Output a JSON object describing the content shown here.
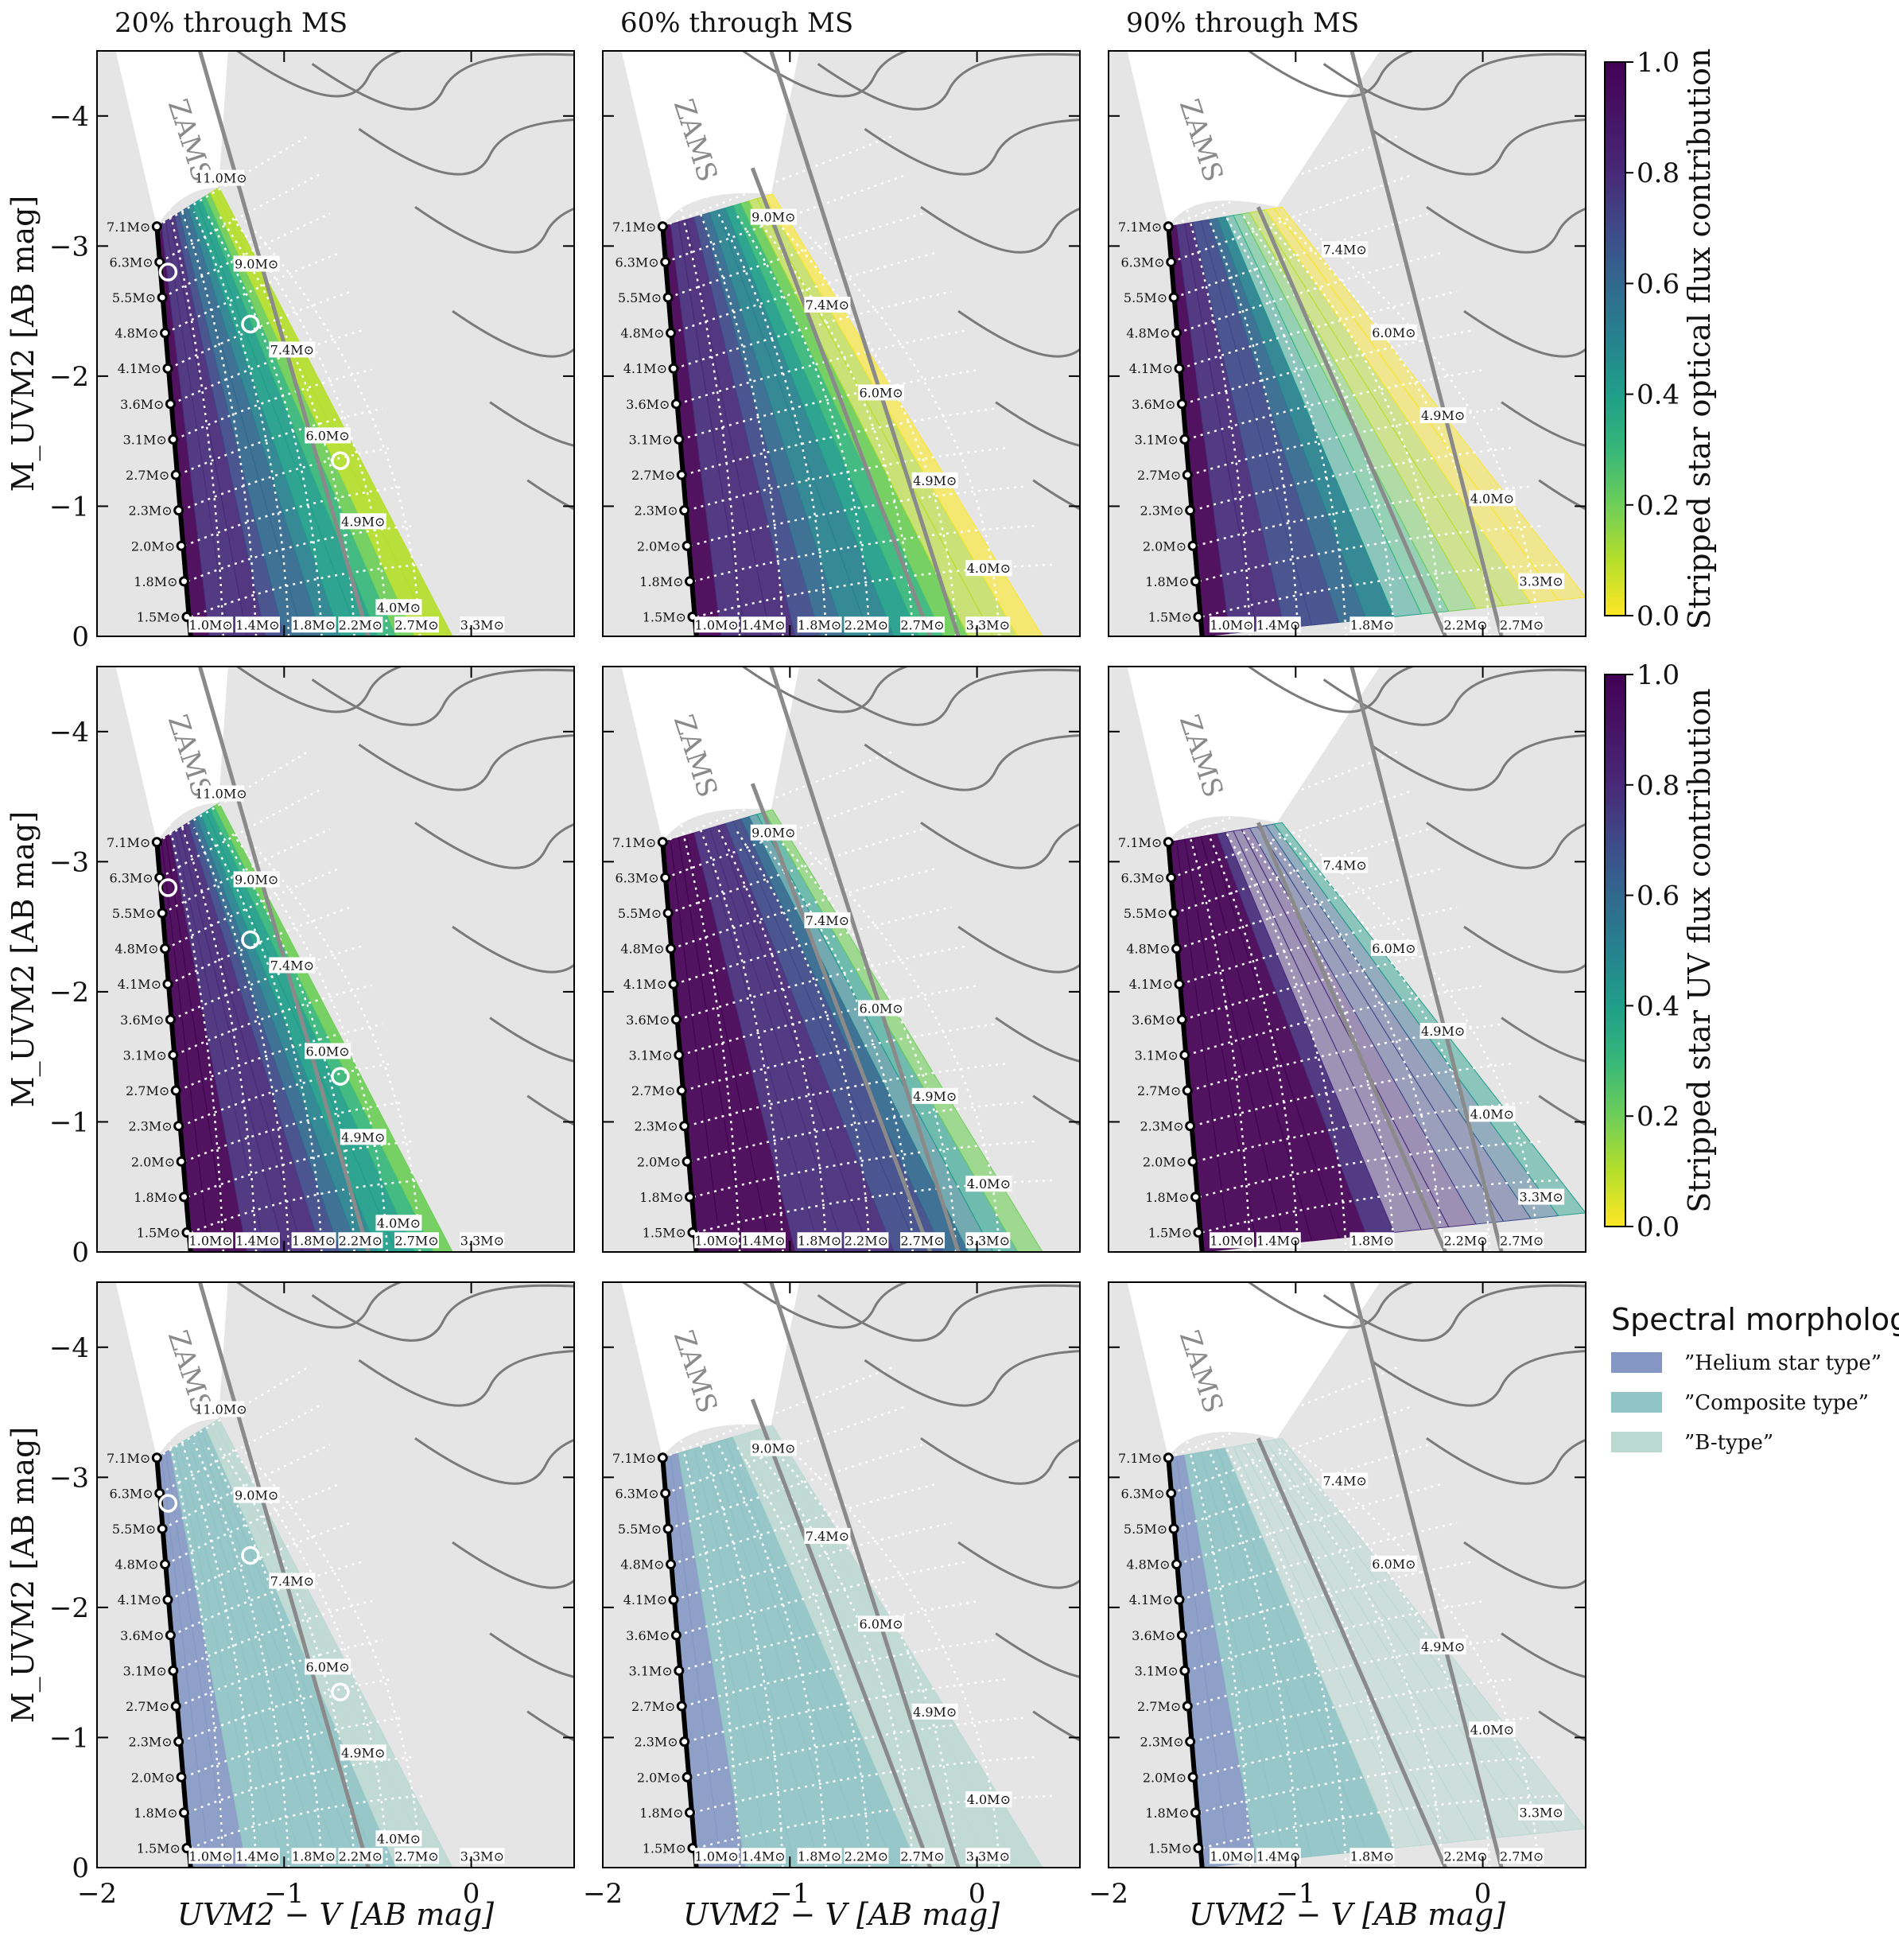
{
  "columns": [
    "20% through MS",
    "60% through MS",
    "90% through MS"
  ],
  "axes": {
    "xlabel": "UVM2 − V [AB mag]",
    "ylabel": "M_UVM2 [AB mag]",
    "xlim": [
      -2.0,
      0.55
    ],
    "ylim": [
      0.0,
      -4.5
    ],
    "xticks": [
      -2,
      -1,
      0
    ],
    "yticks": [
      0,
      -1,
      -2,
      -3,
      -4
    ],
    "xtick_labels": [
      "−2",
      "−1",
      "0"
    ],
    "ytick_labels": [
      "0",
      "−1",
      "−2",
      "−3",
      "−4"
    ]
  },
  "zams_label": "ZAMS",
  "stripped_masses_left": [
    "7.1M⊙",
    "6.3M⊙",
    "5.5M⊙",
    "4.8M⊙",
    "4.1M⊙",
    "3.6M⊙",
    "3.1M⊙",
    "2.7M⊙",
    "2.3M⊙",
    "2.0M⊙",
    "1.8M⊙",
    "1.5M⊙"
  ],
  "companion_masses": {
    "col1": [
      "11.0M⊙",
      "9.0M⊙",
      "7.4M⊙",
      "6.0M⊙",
      "4.9M⊙",
      "4.0M⊙"
    ],
    "col2": [
      "9.0M⊙",
      "7.4M⊙",
      "6.0M⊙",
      "4.9M⊙",
      "4.0M⊙"
    ],
    "col3": [
      "7.4M⊙",
      "6.0M⊙",
      "4.9M⊙",
      "4.0M⊙",
      "3.3M⊙"
    ]
  },
  "bottom_masses": {
    "col1": [
      "1.0M⊙",
      "1.4M⊙",
      "1.8M⊙",
      "2.2M⊙",
      "2.7M⊙",
      "3.3M⊙"
    ],
    "col2": [
      "1.0M⊙",
      "1.4M⊙",
      "1.8M⊙",
      "2.2M⊙",
      "2.7M⊙",
      "3.3M⊙"
    ],
    "col3": [
      "1.0M⊙",
      "1.4M⊙",
      "1.8M⊙",
      "2.2M⊙",
      "2.7M⊙"
    ]
  },
  "colorbars": [
    {
      "label": "Stripped star optical flux contribution",
      "ticks": [
        "0.0",
        "0.2",
        "0.4",
        "0.6",
        "0.8",
        "1.0"
      ]
    },
    {
      "label": "Stripped star UV flux contribution",
      "ticks": [
        "0.0",
        "0.2",
        "0.4",
        "0.6",
        "0.8",
        "1.0"
      ]
    }
  ],
  "legend": {
    "title": "Spectral morphology",
    "items": [
      {
        "label": "”Helium star type”",
        "color": "#8497c4"
      },
      {
        "label": "”Composite type”",
        "color": "#8fc3c5"
      },
      {
        "label": "”B-type”",
        "color": "#bcd9d1"
      }
    ]
  },
  "chart_data": {
    "type": "grid-of-contour-plots",
    "rows": [
      "Stripped star optical flux contribution",
      "Stripped star UV flux contribution",
      "Spectral morphology"
    ],
    "stripped_star_track_x": [
      -1.5,
      -1.68
    ],
    "stripped_star_track_y": [
      0.0,
      -3.15
    ],
    "observed_points": [
      {
        "x": -1.62,
        "y": -2.8
      },
      {
        "x": -1.18,
        "y": -2.4
      },
      {
        "x": -0.7,
        "y": -1.35
      }
    ],
    "background_color": "#e5e5e5"
  }
}
